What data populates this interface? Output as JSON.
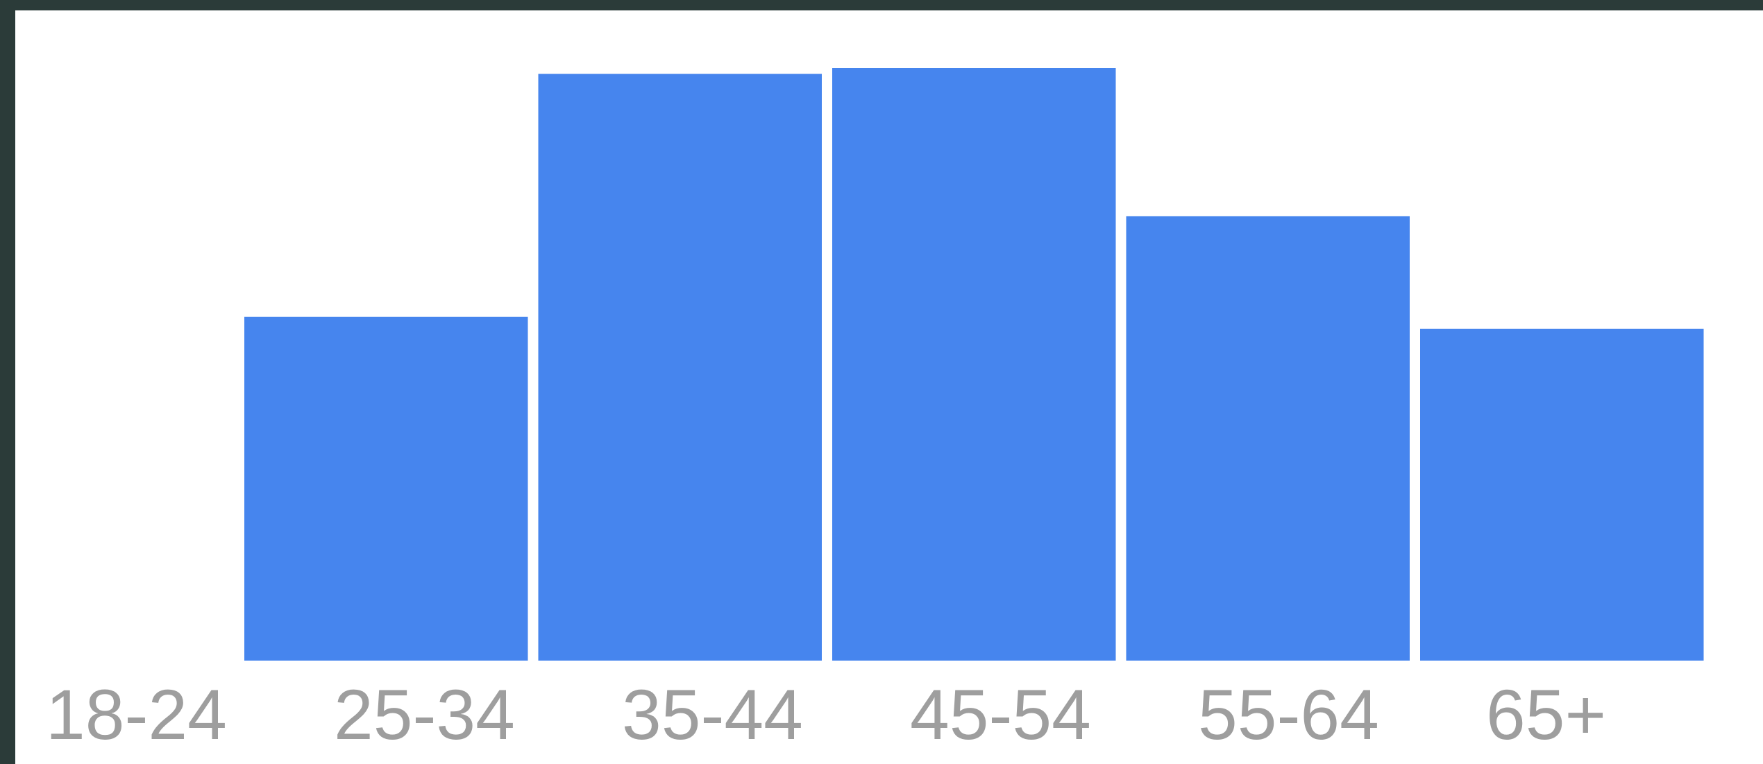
{
  "chart_data": {
    "type": "bar",
    "categories": [
      "18-24",
      "25-34",
      "35-44",
      "45-54",
      "55-64",
      "65+"
    ],
    "values": [
      0,
      58,
      99,
      100,
      75,
      56
    ],
    "title": "",
    "xlabel": "",
    "ylabel": "",
    "ylim": [
      0,
      100
    ],
    "grid": false,
    "legend": "none",
    "colors": {
      "bar": "#4685ee",
      "tick_label": "#9e9e9e",
      "background": "#ffffff",
      "border": "#2b3b39"
    }
  }
}
